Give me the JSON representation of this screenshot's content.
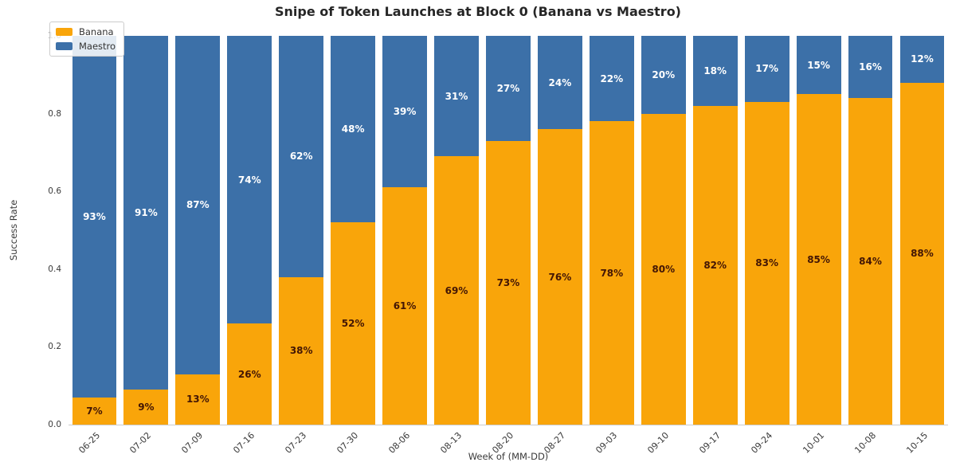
{
  "title": "Snipe of Token Launches at Block 0 (Banana vs Maestro)",
  "chart_data": {
    "type": "bar",
    "stacked": true,
    "title": "Snipe of Token Launches at Block 0 (Banana vs Maestro)",
    "xlabel": "Week of (MM-DD)",
    "ylabel": "Success Rate",
    "categories": [
      "06-25",
      "07-02",
      "07-09",
      "07-16",
      "07-23",
      "07-30",
      "08-06",
      "08-13",
      "08-20",
      "08-27",
      "09-03",
      "09-10",
      "09-17",
      "09-24",
      "10-01",
      "10-08",
      "10-15"
    ],
    "series": [
      {
        "name": "Banana",
        "color": "#F9A50A",
        "label_color": "#431605",
        "values": [
          7,
          9,
          13,
          26,
          38,
          52,
          61,
          69,
          73,
          76,
          78,
          80,
          82,
          83,
          85,
          84,
          88
        ]
      },
      {
        "name": "Maestro",
        "color": "#3C70A8",
        "label_color": "#FFFFFF",
        "values": [
          93,
          91,
          87,
          74,
          62,
          48,
          39,
          31,
          27,
          24,
          22,
          20,
          18,
          17,
          15,
          16,
          12
        ]
      }
    ],
    "label_suffix": "%",
    "ylim": [
      0,
      1
    ],
    "yticks": [
      "0.0",
      "0.2",
      "0.4",
      "0.6",
      "0.8",
      "1.0"
    ],
    "grid": false,
    "legend_position": "upper left",
    "axis_line_color": "#cbcbcb"
  }
}
